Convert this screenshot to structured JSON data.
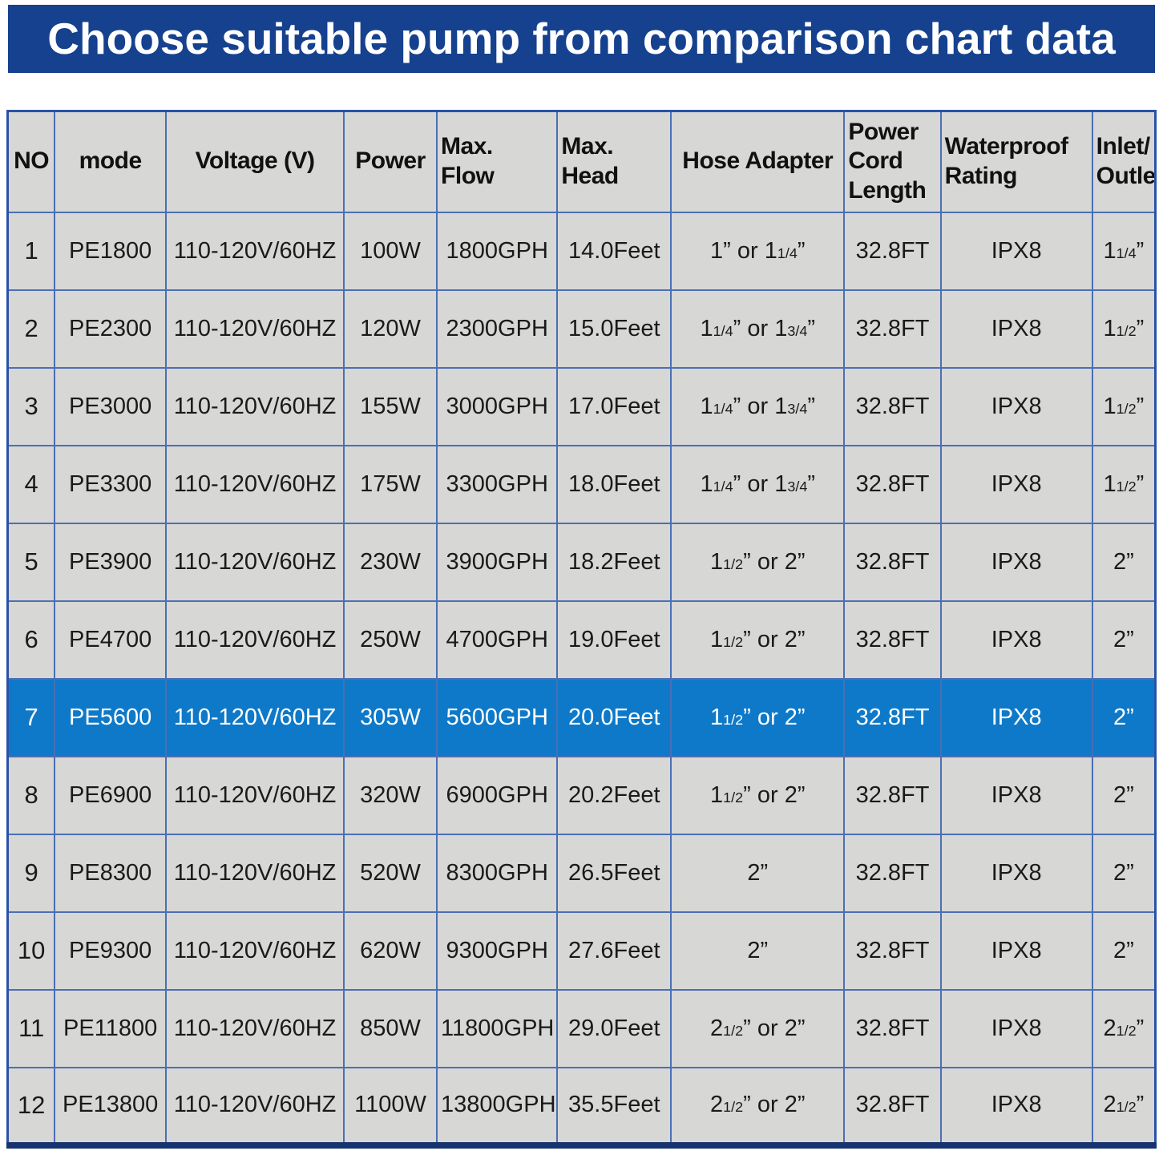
{
  "colors": {
    "banner": "#15418f",
    "highlight": "#0e79c8",
    "cellbg": "#d7d7d5",
    "grid": "#4a6fb5",
    "outer": "#2a52a8",
    "bottomline": "#16336e",
    "textdark": "#1a1a1a"
  },
  "chart_data": {
    "type": "table",
    "title": "Choose suitable pump from comparison chart data",
    "columns": [
      "NO",
      "mode",
      "Voltage (V)",
      "Power",
      "Max.\nFlow",
      "Max.\nHead",
      "Hose Adapter",
      "Power\nCord\nLength",
      "Waterproof\nRating",
      "Inlet/\nOutlet"
    ],
    "column_keys": [
      "no",
      "mode",
      "voltage",
      "power",
      "max_flow",
      "max_head",
      "hose_adapter",
      "cord_length",
      "waterproof",
      "inlet_outlet"
    ],
    "highlighted_row_no": "7",
    "rows": [
      {
        "no": "1",
        "mode": "PE1800",
        "voltage": "110-120V/60HZ",
        "power": "100W",
        "max_flow": "1800GPH",
        "max_head": "14.0Feet",
        "hose_adapter": "1” or 1{1/4}”",
        "cord_length": "32.8FT",
        "waterproof": "IPX8",
        "inlet_outlet": "1{1/4}”",
        "highlighted": false
      },
      {
        "no": "2",
        "mode": "PE2300",
        "voltage": "110-120V/60HZ",
        "power": "120W",
        "max_flow": "2300GPH",
        "max_head": "15.0Feet",
        "hose_adapter": "1{1/4}” or 1{3/4}”",
        "cord_length": "32.8FT",
        "waterproof": "IPX8",
        "inlet_outlet": "1{1/2}”",
        "highlighted": false
      },
      {
        "no": "3",
        "mode": "PE3000",
        "voltage": "110-120V/60HZ",
        "power": "155W",
        "max_flow": "3000GPH",
        "max_head": "17.0Feet",
        "hose_adapter": "1{1/4}” or 1{3/4}”",
        "cord_length": "32.8FT",
        "waterproof": "IPX8",
        "inlet_outlet": "1{1/2}”",
        "highlighted": false
      },
      {
        "no": "4",
        "mode": "PE3300",
        "voltage": "110-120V/60HZ",
        "power": "175W",
        "max_flow": "3300GPH",
        "max_head": "18.0Feet",
        "hose_adapter": "1{1/4}” or 1{3/4}”",
        "cord_length": "32.8FT",
        "waterproof": "IPX8",
        "inlet_outlet": "1{1/2}”",
        "highlighted": false
      },
      {
        "no": "5",
        "mode": "PE3900",
        "voltage": "110-120V/60HZ",
        "power": "230W",
        "max_flow": "3900GPH",
        "max_head": "18.2Feet",
        "hose_adapter": "1{1/2}” or 2”",
        "cord_length": "32.8FT",
        "waterproof": "IPX8",
        "inlet_outlet": "2”",
        "highlighted": false
      },
      {
        "no": "6",
        "mode": "PE4700",
        "voltage": "110-120V/60HZ",
        "power": "250W",
        "max_flow": "4700GPH",
        "max_head": "19.0Feet",
        "hose_adapter": "1{1/2}” or 2”",
        "cord_length": "32.8FT",
        "waterproof": "IPX8",
        "inlet_outlet": "2”",
        "highlighted": false
      },
      {
        "no": "7",
        "mode": "PE5600",
        "voltage": "110-120V/60HZ",
        "power": "305W",
        "max_flow": "5600GPH",
        "max_head": "20.0Feet",
        "hose_adapter": "1{1/2}” or 2”",
        "cord_length": "32.8FT",
        "waterproof": "IPX8",
        "inlet_outlet": "2”",
        "highlighted": true
      },
      {
        "no": "8",
        "mode": "PE6900",
        "voltage": "110-120V/60HZ",
        "power": "320W",
        "max_flow": "6900GPH",
        "max_head": "20.2Feet",
        "hose_adapter": "1{1/2}” or 2”",
        "cord_length": "32.8FT",
        "waterproof": "IPX8",
        "inlet_outlet": "2”",
        "highlighted": false
      },
      {
        "no": "9",
        "mode": "PE8300",
        "voltage": "110-120V/60HZ",
        "power": "520W",
        "max_flow": "8300GPH",
        "max_head": "26.5Feet",
        "hose_adapter": "2”",
        "cord_length": "32.8FT",
        "waterproof": "IPX8",
        "inlet_outlet": "2”",
        "highlighted": false
      },
      {
        "no": "10",
        "mode": "PE9300",
        "voltage": "110-120V/60HZ",
        "power": "620W",
        "max_flow": "9300GPH",
        "max_head": "27.6Feet",
        "hose_adapter": "2”",
        "cord_length": "32.8FT",
        "waterproof": "IPX8",
        "inlet_outlet": "2”",
        "highlighted": false
      },
      {
        "no": "11",
        "mode": "PE11800",
        "voltage": "110-120V/60HZ",
        "power": "850W",
        "max_flow": "11800GPH",
        "max_head": "29.0Feet",
        "hose_adapter": "2{1/2}” or 2”",
        "cord_length": "32.8FT",
        "waterproof": "IPX8",
        "inlet_outlet": "2{1/2}”",
        "highlighted": false
      },
      {
        "no": "12",
        "mode": "PE13800",
        "voltage": "110-120V/60HZ",
        "power": "1100W",
        "max_flow": "13800GPH",
        "max_head": "35.5Feet",
        "hose_adapter": "2{1/2}” or 2”",
        "cord_length": "32.8FT",
        "waterproof": "IPX8",
        "inlet_outlet": "2{1/2}”",
        "highlighted": false
      }
    ]
  }
}
